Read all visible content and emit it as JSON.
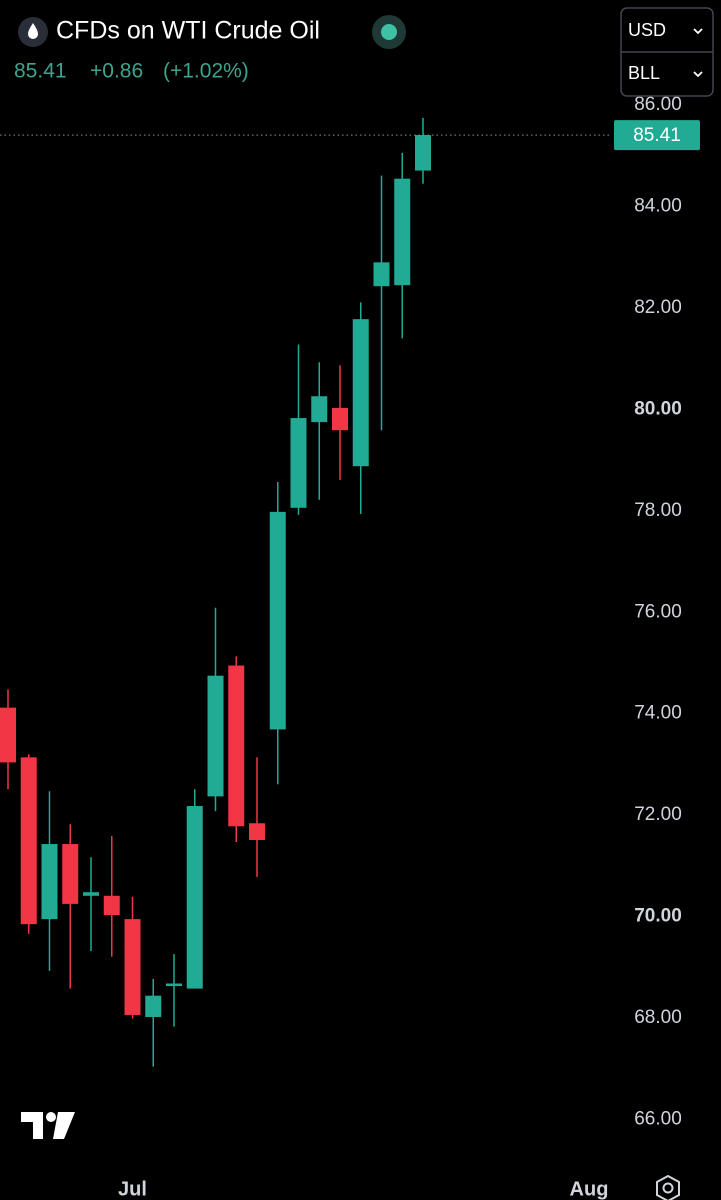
{
  "chart_data": {
    "type": "candlestick",
    "title": "CFDs on WTI Crude Oil",
    "change": "+0.86",
    "change_percent": "(+1.02%)",
    "currency": "USD",
    "unit": "BLL",
    "categories": [
      null,
      null,
      null,
      null,
      null,
      null,
      "Jul",
      null,
      null,
      null,
      null,
      null,
      null,
      null,
      null,
      null,
      null,
      null,
      null,
      null,
      null,
      null,
      null,
      null,
      null,
      null,
      null,
      null,
      "Aug"
    ],
    "open": [
      74.12,
      73.14,
      69.95,
      71.43,
      70.41,
      70.41,
      69.95,
      68.02,
      68.63,
      68.58,
      72.37,
      74.95,
      71.84,
      73.69,
      78.06,
      79.75,
      80.03,
      78.88,
      82.43,
      82.45,
      84.71,
      null,
      null,
      null,
      null,
      null,
      null,
      null,
      null
    ],
    "high": [
      74.48,
      73.2,
      72.47,
      71.82,
      71.17,
      71.59,
      70.39,
      68.77,
      69.26,
      72.51,
      76.09,
      75.13,
      73.14,
      78.57,
      81.28,
      80.93,
      80.87,
      82.11,
      84.61,
      85.06,
      85.75,
      null,
      null,
      null,
      null,
      null,
      null,
      null,
      null
    ],
    "low": [
      72.51,
      69.66,
      68.93,
      68.58,
      69.32,
      69.21,
      67.99,
      67.04,
      67.83,
      68.58,
      72.08,
      71.47,
      70.78,
      72.61,
      77.92,
      78.22,
      78.61,
      77.94,
      79.59,
      81.4,
      84.45,
      null,
      null,
      null,
      null,
      null,
      null,
      null,
      null
    ],
    "close": [
      73.04,
      69.85,
      71.43,
      70.25,
      70.48,
      70.03,
      68.06,
      68.44,
      68.68,
      72.18,
      74.75,
      71.78,
      71.51,
      77.98,
      79.83,
      80.26,
      79.59,
      81.78,
      82.9,
      84.55,
      85.41,
      null,
      null,
      null,
      null,
      null,
      null,
      null,
      null
    ],
    "up_color": "#22ab94",
    "down_color": "#f23645",
    "ylim": [
      65.2,
      86.2
    ],
    "yticks": [
      {
        "value": 66,
        "label": "66.00"
      },
      {
        "value": 68,
        "label": "68.00"
      },
      {
        "value": 70,
        "label": "70.00"
      },
      {
        "value": 72,
        "label": "72.00"
      },
      {
        "value": 74,
        "label": "74.00"
      },
      {
        "value": 76,
        "label": "76.00"
      },
      {
        "value": 78,
        "label": "78.00"
      },
      {
        "value": 80,
        "label": "80.00"
      },
      {
        "value": 82,
        "label": "82.00"
      },
      {
        "value": 84,
        "label": "84.00"
      },
      {
        "value": 86,
        "label": "86.00"
      }
    ],
    "last_price_line": true
  }
}
